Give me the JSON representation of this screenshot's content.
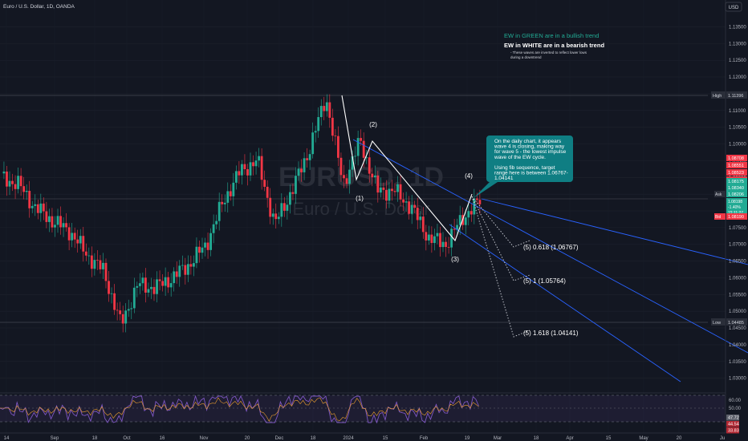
{
  "header": {
    "symbol_text": "Euro / U.S. Dollar, 1D, OANDA",
    "currency_button": "USD"
  },
  "watermark": {
    "ticker": "EURUSD, 1D",
    "name": "Euro / U.S. Dollar"
  },
  "legend": {
    "green_note": "EW in GREEN are in a bullish trend",
    "white_note": "EW in WHITE are in a bearish trend",
    "sub_note_1": "- These waves are inverted to reflect lower lows",
    "sub_note_2": "during a downtrend"
  },
  "callout": {
    "lines": [
      "On the daily chart, it appears",
      "wave 4 is closing, making way",
      "for wave 5 - the lowest impulse",
      "wave of the EW cycle.",
      "",
      "Using fib sequence, target",
      "range here is between 1.06767-",
      "1.04141"
    ],
    "color": "#0f7e83"
  },
  "waves": [
    "(1)",
    "(2)",
    "(3)",
    "(4)"
  ],
  "targets": [
    "(5) 0.618 (1.06767)",
    "(5) 1 (1.05764)",
    "(5) 1.618 (1.04141)"
  ],
  "price_axis": {
    "ticks": [
      "1.13500",
      "1.13000",
      "1.12500",
      "1.12000",
      "1.11500",
      "1.11000",
      "1.10500",
      "1.10000",
      "1.09500",
      "1.09000",
      "1.08500",
      "1.08000",
      "1.07500",
      "1.07000",
      "1.06500",
      "1.06000",
      "1.05500",
      "1.05000",
      "1.04500",
      "1.04000",
      "1.03500",
      "1.03000"
    ],
    "high_label": "High",
    "high_value": "1.11396",
    "low_label": "Low",
    "low_value": "1.04485",
    "ask_label": "Ask",
    "ask_value": "1.08206",
    "bid_label": "Bid",
    "bid_value": "1.08190",
    "ask_extra": [
      "1.08198",
      "-1.40%",
      "22:11:27"
    ],
    "red_stack": [
      "1.08708",
      "1.08551",
      "1.08523",
      "1.08444"
    ],
    "green_stack": [
      "1.08175",
      "1.08340"
    ]
  },
  "rsi_axis": {
    "ticks": [
      "60.00",
      "50.00"
    ],
    "values": [
      "47.72",
      "44.54",
      "33.83"
    ],
    "value_colors": [
      "#5d606b",
      "#b22833",
      "#b22833"
    ]
  },
  "time_axis": {
    "labels": [
      "14",
      "Sep",
      "18",
      "Oct",
      "16",
      "Nov",
      "20",
      "Dec",
      "18",
      "2024",
      "15",
      "Feb",
      "19",
      "Mar",
      "18",
      "Apr",
      "15",
      "May",
      "20",
      "Ju"
    ]
  },
  "colors": {
    "up": "#22ab94",
    "down": "#f23645",
    "channel": "#2962ff",
    "rsi": "#7e57c2",
    "background": "#131722"
  },
  "chart_data": {
    "type": "candlestick",
    "symbol": "EURUSD",
    "interval": "1D",
    "y_range": [
      1.028,
      1.138
    ],
    "high": 1.11396,
    "low": 1.04485,
    "last_price": 1.08198,
    "change_percent": -1.4,
    "key_points": [
      {
        "label": "Aug 14",
        "price": 1.09
      },
      {
        "label": "Aug 21",
        "price": 1.088
      },
      {
        "label": "Aug 28",
        "price": 1.081
      },
      {
        "label": "Sep 4",
        "price": 1.077
      },
      {
        "label": "Sep 11",
        "price": 1.074
      },
      {
        "label": "Sep 18",
        "price": 1.067
      },
      {
        "label": "Sep 25",
        "price": 1.062
      },
      {
        "label": "Oct 3",
        "price": 1.046
      },
      {
        "label": "Oct 10",
        "price": 1.058
      },
      {
        "label": "Oct 17",
        "price": 1.057
      },
      {
        "label": "Oct 24",
        "price": 1.06
      },
      {
        "label": "Nov 1",
        "price": 1.064
      },
      {
        "label": "Nov 8",
        "price": 1.07
      },
      {
        "label": "Nov 15",
        "price": 1.083
      },
      {
        "label": "Nov 22",
        "price": 1.092
      },
      {
        "label": "Nov 29",
        "price": 1.095
      },
      {
        "label": "Dec 6",
        "price": 1.076
      },
      {
        "label": "Dec 13",
        "price": 1.086
      },
      {
        "label": "Dec 20",
        "price": 1.098
      },
      {
        "label": "Dec 28",
        "price": 1.114
      },
      {
        "label": "Jan 3",
        "price": 1.088
      },
      {
        "label": "Jan 11",
        "price": 1.101
      },
      {
        "label": "Jan 17",
        "price": 1.086
      },
      {
        "label": "Jan 24",
        "price": 1.086
      },
      {
        "label": "Jan 31",
        "price": 1.081
      },
      {
        "label": "Feb 7",
        "price": 1.072
      },
      {
        "label": "Feb 14",
        "price": 1.07
      },
      {
        "label": "Feb 21",
        "price": 1.078
      },
      {
        "label": "Feb 26",
        "price": 1.083
      }
    ],
    "elliott_waves": [
      {
        "label": "start",
        "price": 1.114
      },
      {
        "label": "(1)",
        "price": 1.088
      },
      {
        "label": "(2)",
        "price": 1.101
      },
      {
        "label": "(3)",
        "price": 1.07
      },
      {
        "label": "(4)",
        "price": 1.084
      }
    ],
    "fib_targets": [
      {
        "label": "(5) 0.618",
        "price": 1.06767
      },
      {
        "label": "(5) 1",
        "price": 1.05764
      },
      {
        "label": "(5) 1.618",
        "price": 1.04141
      }
    ],
    "indicator": {
      "name": "RSI",
      "level_values": [
        60,
        50
      ]
    }
  }
}
